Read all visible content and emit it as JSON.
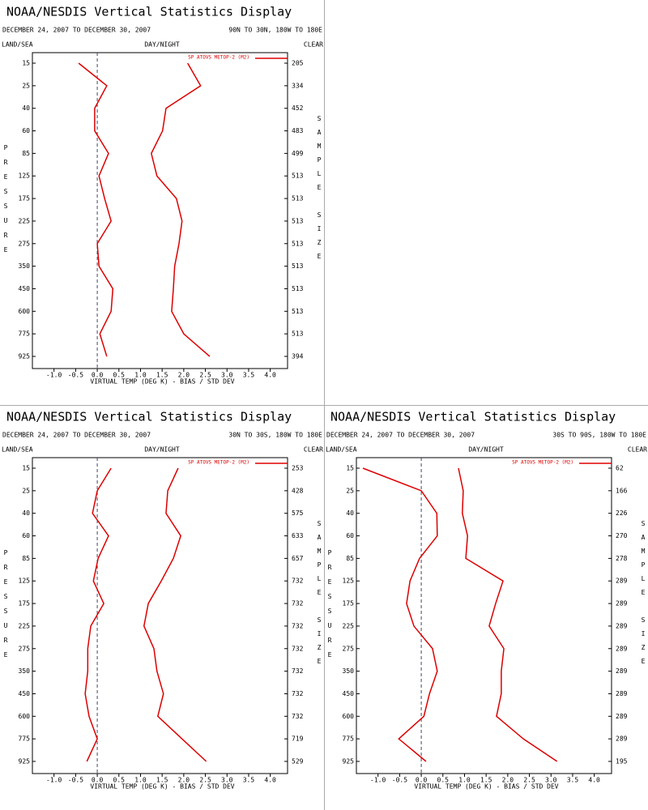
{
  "chart_data": [
    {
      "type": "line",
      "title": "NOAA/NESDIS Vertical Statistics Display",
      "subtitle": "DECEMBER 24, 2007 TO DECEMBER 30, 2007",
      "region": "90N TO 30N, 180W TO 180E",
      "land_sea": "LAND/SEA",
      "day_night": "DAY/NIGHT",
      "clear": "CLEAR",
      "y_label": "PRESSURE",
      "y2_label": "SAMPLE SIZE",
      "x_label": "VIRTUAL TEMP (DEG K) - BIAS / STD DEV",
      "categories": [
        "15",
        "25",
        "40",
        "60",
        "85",
        "125",
        "175",
        "225",
        "275",
        "350",
        "450",
        "600",
        "775",
        "925"
      ],
      "series": [
        {
          "name": "SP ATOVS METOP-2 (M2)",
          "color": "#dd0000",
          "bias": [
            -0.43,
            0.22,
            -0.06,
            -0.06,
            0.26,
            0.04,
            0.17,
            0.32,
            0.0,
            0.04,
            0.36,
            0.32,
            0.06,
            0.22
          ],
          "std_dev": [
            2.09,
            2.39,
            1.59,
            1.51,
            1.25,
            1.38,
            1.83,
            1.96,
            1.89,
            1.79,
            1.76,
            1.72,
            2.0,
            2.6
          ]
        }
      ],
      "sample_size": [
        "205",
        "334",
        "452",
        "483",
        "499",
        "513",
        "513",
        "513",
        "513",
        "513",
        "513",
        "513",
        "513",
        "394"
      ],
      "xlim": [
        -1.5,
        4.4
      ],
      "vline": 0,
      "xticks": [
        {
          "value": -1,
          "label": "-1.0"
        },
        {
          "value": -0.5,
          "label": "-0.5"
        },
        {
          "value": 0,
          "label": "0.0"
        },
        0.5,
        {
          "value": 1,
          "label": "1.0"
        },
        1.5,
        {
          "value": 2,
          "label": "2.0"
        },
        2.5,
        {
          "value": 3,
          "label": "3.0"
        },
        3.5,
        {
          "value": 4,
          "label": "4.0"
        }
      ]
    },
    {
      "type": "line",
      "title": "NOAA/NESDIS Vertical Statistics Display",
      "subtitle": "DECEMBER 24, 2007 TO DECEMBER 30, 2007",
      "region": "30N TO 30S, 180W TO 180E",
      "land_sea": "LAND/SEA",
      "day_night": "DAY/NIGHT",
      "clear": "CLEAR",
      "y_label": "PRESSURE",
      "y2_label": "SAMPLE SIZE",
      "x_label": "VIRTUAL TEMP (DEG K) - BIAS / STD DEV",
      "categories": [
        "15",
        "25",
        "40",
        "60",
        "85",
        "125",
        "175",
        "225",
        "275",
        "350",
        "450",
        "600",
        "775",
        "925"
      ],
      "series": [
        {
          "name": "SP ATOVS METOP-2 (M2)",
          "color": "#dd0000",
          "bias": [
            0.32,
            0.0,
            -0.11,
            0.26,
            0.02,
            -0.09,
            0.15,
            -0.15,
            -0.22,
            -0.22,
            -0.28,
            -0.19,
            0.0,
            -0.24
          ],
          "std_dev": [
            1.87,
            1.63,
            1.59,
            1.93,
            1.76,
            1.48,
            1.18,
            1.08,
            1.31,
            1.38,
            1.53,
            1.4,
            1.96,
            2.52
          ]
        }
      ],
      "sample_size": [
        "253",
        "428",
        "575",
        "633",
        "657",
        "732",
        "732",
        "732",
        "732",
        "732",
        "732",
        "732",
        "719",
        "529"
      ],
      "xlim": [
        -1.5,
        4.4
      ],
      "vline": 0,
      "xticks": [
        {
          "value": -1,
          "label": "-1.0"
        },
        {
          "value": -0.5,
          "label": "-0.5"
        },
        {
          "value": 0,
          "label": "0.0"
        },
        0.5,
        {
          "value": 1,
          "label": "1.0"
        },
        1.5,
        {
          "value": 2,
          "label": "2.0"
        },
        2.5,
        {
          "value": 3,
          "label": "3.0"
        },
        3.5,
        {
          "value": 4,
          "label": "4.0"
        }
      ]
    },
    {
      "type": "line",
      "title": "NOAA/NESDIS Vertical Statistics Display",
      "subtitle": "DECEMBER 24, 2007 TO DECEMBER 30, 2007",
      "region": "30S TO 90S, 180W TO 180E",
      "land_sea": "LAND/SEA",
      "day_night": "DAY/NIGHT",
      "clear": "CLEAR",
      "y_label": "PRESSURE",
      "y2_label": "SAMPLE SIZE",
      "x_label": "VIRTUAL TEMP (DEG K) - BIAS / STD DEV",
      "categories": [
        "15",
        "25",
        "40",
        "60",
        "85",
        "125",
        "175",
        "225",
        "275",
        "350",
        "450",
        "600",
        "775",
        "925"
      ],
      "series": [
        {
          "name": "SP ATOVS METOP-2 (M2)",
          "color": "#dd0000",
          "bias": [
            -1.35,
            0.0,
            0.36,
            0.37,
            -0.04,
            -0.26,
            -0.34,
            -0.17,
            0.26,
            0.37,
            0.19,
            0.06,
            -0.52,
            0.11
          ],
          "std_dev": [
            0.86,
            0.97,
            0.95,
            1.07,
            1.03,
            1.89,
            1.72,
            1.57,
            1.91,
            1.85,
            1.85,
            1.74,
            2.36,
            3.14
          ]
        }
      ],
      "sample_size": [
        "62",
        "166",
        "226",
        "270",
        "278",
        "289",
        "289",
        "289",
        "289",
        "289",
        "289",
        "289",
        "289",
        "195"
      ],
      "xlim": [
        -1.5,
        4.4
      ],
      "vline": 0,
      "xticks": [
        {
          "value": -1,
          "label": "-1.0"
        },
        {
          "value": -0.5,
          "label": "-0.5"
        },
        {
          "value": 0,
          "label": "0.0"
        },
        0.5,
        {
          "value": 1,
          "label": "1.0"
        },
        1.5,
        {
          "value": 2,
          "label": "2.0"
        },
        2.5,
        {
          "value": 3,
          "label": "3.0"
        },
        3.5,
        {
          "value": 4,
          "label": "4.0"
        }
      ]
    }
  ]
}
